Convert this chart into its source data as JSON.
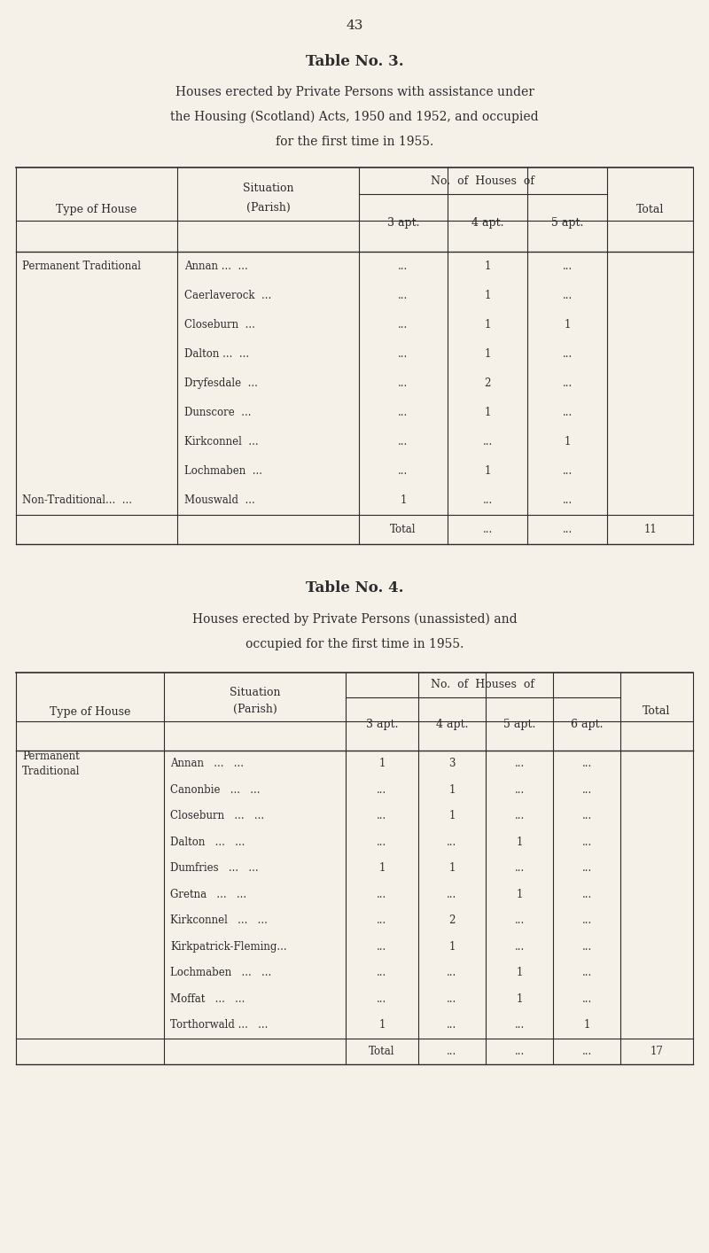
{
  "bg_color": "#f5f0e8",
  "text_color": "#2c2c2c",
  "page_number": "43",
  "table3": {
    "title": "Table No. 3.",
    "subtitle_lines": [
      "Houses erected by Private Persons with assistance under",
      "the Housing (Scotland) Acts, 1950 and 1952, and occupied",
      "for the first time in 1955."
    ],
    "rows": [
      [
        "Permanent Traditional",
        "Annan ...  ...",
        "...",
        "1",
        "..."
      ],
      [
        "",
        "Caerlaverock  ...",
        "...",
        "1",
        "..."
      ],
      [
        "",
        "Closeburn  ...",
        "...",
        "1",
        "1"
      ],
      [
        "",
        "Dalton ...  ...",
        "...",
        "1",
        "..."
      ],
      [
        "",
        "Dryfesdale  ...",
        "...",
        "2",
        "..."
      ],
      [
        "",
        "Dunscore  ...",
        "...",
        "1",
        "..."
      ],
      [
        "",
        "Kirkconnel  ...",
        "...",
        "...",
        "1"
      ],
      [
        "",
        "Lochmaben  ...",
        "...",
        "1",
        "..."
      ],
      [
        "Non-Traditional...  ...",
        "Mouswald  ...",
        "1",
        "...",
        "..."
      ]
    ]
  },
  "table4": {
    "title": "Table No. 4.",
    "subtitle_lines": [
      "Houses erected by Private Persons (unassisted) and",
      "occupied for the first time in 1955."
    ],
    "rows": [
      [
        "Permanent\nTraditional",
        "Annan   ...   ...",
        "1",
        "3",
        "...",
        "..."
      ],
      [
        "",
        "Canonbie   ...   ...",
        "...",
        "1",
        "...",
        "..."
      ],
      [
        "",
        "Closeburn   ...   ...",
        "...",
        "1",
        "...",
        "..."
      ],
      [
        "",
        "Dalton   ...   ...",
        "...",
        "...",
        "1",
        "..."
      ],
      [
        "",
        "Dumfries   ...   ...",
        "1",
        "1",
        "...",
        "..."
      ],
      [
        "",
        "Gretna   ...   ...",
        "...",
        "...",
        "1",
        "..."
      ],
      [
        "",
        "Kirkconnel   ...   ...",
        "...",
        "2",
        "...",
        "..."
      ],
      [
        "",
        "Kirkpatrick-Fleming...",
        "...",
        "1",
        "...",
        "..."
      ],
      [
        "",
        "Lochmaben   ...   ...",
        "...",
        "...",
        "1",
        "..."
      ],
      [
        "",
        "Moffat   ...   ...",
        "...",
        "...",
        "1",
        "..."
      ],
      [
        "",
        "Torthorwald ...   ...",
        "1",
        "...",
        "...",
        "1"
      ]
    ]
  }
}
